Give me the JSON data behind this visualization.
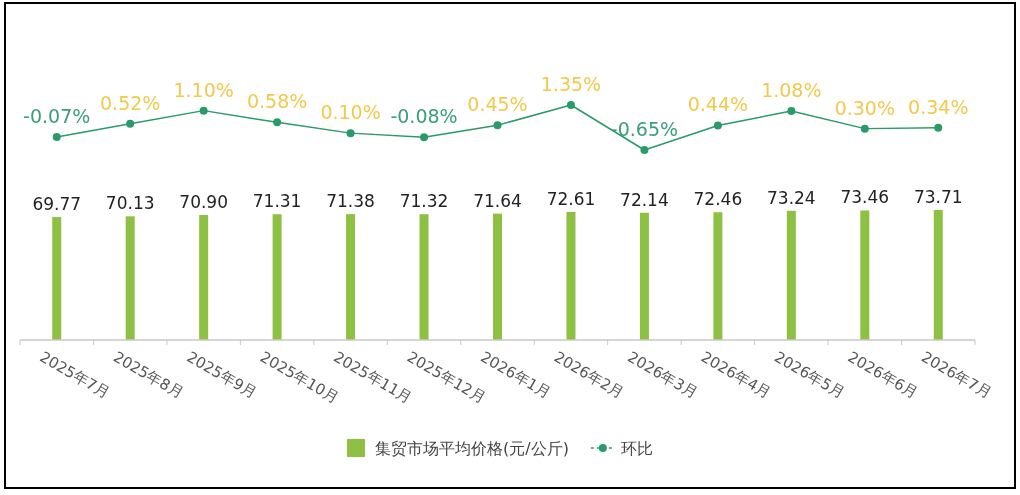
{
  "chart_data": [
    {
      "type": "line",
      "categories": [
        null,
        null,
        null,
        null,
        null,
        null,
        null,
        null,
        null,
        null,
        null,
        null,
        null
      ],
      "series": [
        {
          "name": "环比",
          "color": "#2a9a6a",
          "values": [
            -0.07,
            0.52,
            1.1,
            0.58,
            0.1,
            -0.08,
            0.45,
            1.35,
            -0.65,
            0.44,
            1.08,
            0.3,
            0.34
          ],
          "value_labels": [
            "-0.07%",
            "0.52%",
            "1.10%",
            "0.58%",
            "0.10%",
            "-0.08%",
            "0.45%",
            "1.35%",
            "-0.65%",
            "0.44%",
            "1.08%",
            "0.30%",
            "0.34%"
          ]
        }
      ],
      "marker": "circle",
      "tick_labels": false,
      "legend": "bottom"
    },
    {
      "type": "bar",
      "categories": [
        "2025年7月",
        "2025年8月",
        "2025年9月",
        "2025年10月",
        "2025年11月",
        "2025年12月",
        "2026年1月",
        "2026年2月",
        "2026年3月",
        "2026年4月",
        "2026年5月",
        "2026年6月",
        "2026年7月"
      ],
      "series": [
        {
          "name": "集贸市场平均价格(元/公斤)",
          "color": "#8dc043",
          "values": [
            69.77,
            70.13,
            70.9,
            71.31,
            71.38,
            71.32,
            71.64,
            72.61,
            72.14,
            72.46,
            73.24,
            73.46,
            73.71
          ],
          "value_labels": [
            "69.77",
            "70.13",
            "70.90",
            "71.31",
            "71.38",
            "71.32",
            "71.64",
            "72.61",
            "72.14",
            "72.46",
            "73.24",
            "73.46",
            "73.71"
          ]
        }
      ],
      "tick_labels": "x",
      "legend": "bottom"
    }
  ]
}
